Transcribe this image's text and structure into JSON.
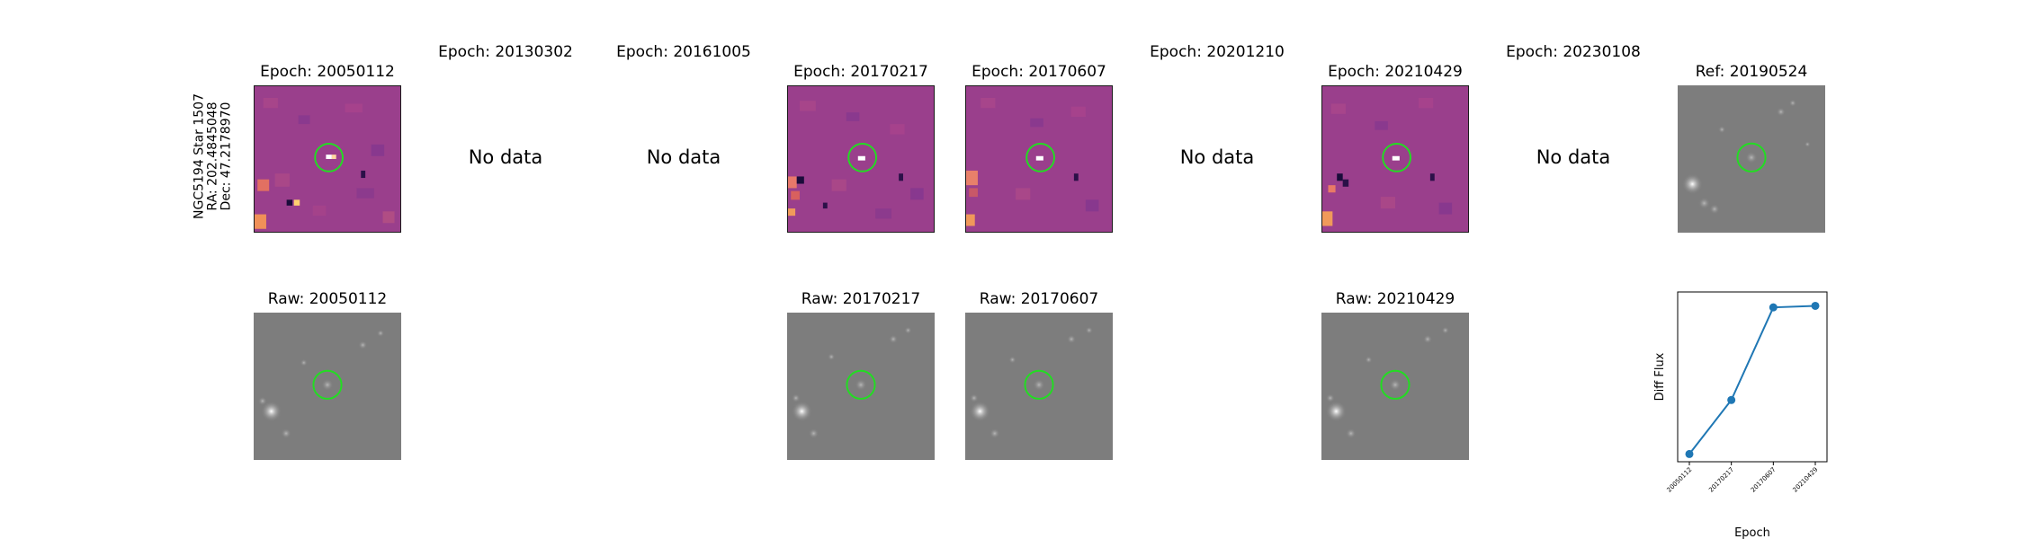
{
  "target": {
    "name": "NGC5194 Star 1507",
    "ra": "RA: 202.4845048",
    "dec": "Dec: 47.2178970"
  },
  "top_row": [
    {
      "title": "Epoch: 20050112",
      "has_data": true
    },
    {
      "title": "Epoch: 20130302",
      "has_data": false,
      "message": "No data"
    },
    {
      "title": "Epoch: 20161005",
      "has_data": false,
      "message": "No data"
    },
    {
      "title": "Epoch: 20170217",
      "has_data": true
    },
    {
      "title": "Epoch: 20170607",
      "has_data": true
    },
    {
      "title": "Epoch: 20201210",
      "has_data": false,
      "message": "No data"
    },
    {
      "title": "Epoch: 20210429",
      "has_data": true
    },
    {
      "title": "Epoch: 20230108",
      "has_data": false,
      "message": "No data"
    }
  ],
  "reference": {
    "title": "Ref: 20190524"
  },
  "raw_row": [
    {
      "title": "Raw: 20050112"
    },
    {
      "title": "Raw: 20170217"
    },
    {
      "title": "Raw: 20170607"
    },
    {
      "title": "Raw: 20210429"
    }
  ],
  "colors": {
    "diff_background": "#9a3f8c",
    "raw_background": "#7d7d7d",
    "aperture": "#22dd22",
    "series": "#1f77b4"
  },
  "chart_data": {
    "type": "line",
    "x": [
      "20050112",
      "20170217",
      "20170607",
      "20210429"
    ],
    "values": [
      0.0,
      0.35,
      0.95,
      0.96
    ],
    "xlabel": "Epoch",
    "ylabel": "Diff Flux",
    "marker": "circle",
    "ylim": [
      -0.05,
      1.05
    ],
    "y_ticks_shown": false
  }
}
